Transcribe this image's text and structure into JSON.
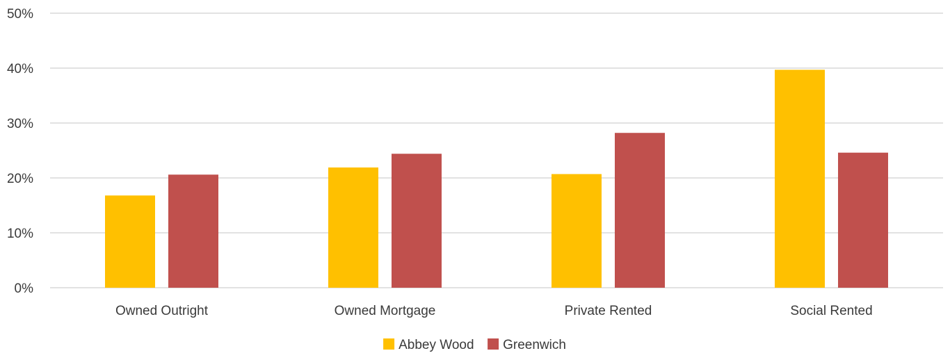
{
  "chart_data": {
    "type": "bar",
    "categories": [
      "Owned Outright",
      "Owned Mortgage",
      "Private Rented",
      "Social Rented"
    ],
    "series": [
      {
        "name": "Abbey Wood",
        "color": "#FFC000",
        "values": [
          16.8,
          21.9,
          20.7,
          39.7
        ]
      },
      {
        "name": "Greenwich",
        "color": "#C0504D",
        "values": [
          20.6,
          24.4,
          28.2,
          24.6
        ]
      }
    ],
    "title": "",
    "xlabel": "",
    "ylabel": "",
    "ylim": [
      0,
      50
    ],
    "yticks": [
      0,
      10,
      20,
      30,
      40,
      50
    ],
    "ytick_labels": [
      "0%",
      "10%",
      "20%",
      "30%",
      "40%",
      "50%"
    ],
    "grid": true,
    "legend": "bottom-center"
  }
}
